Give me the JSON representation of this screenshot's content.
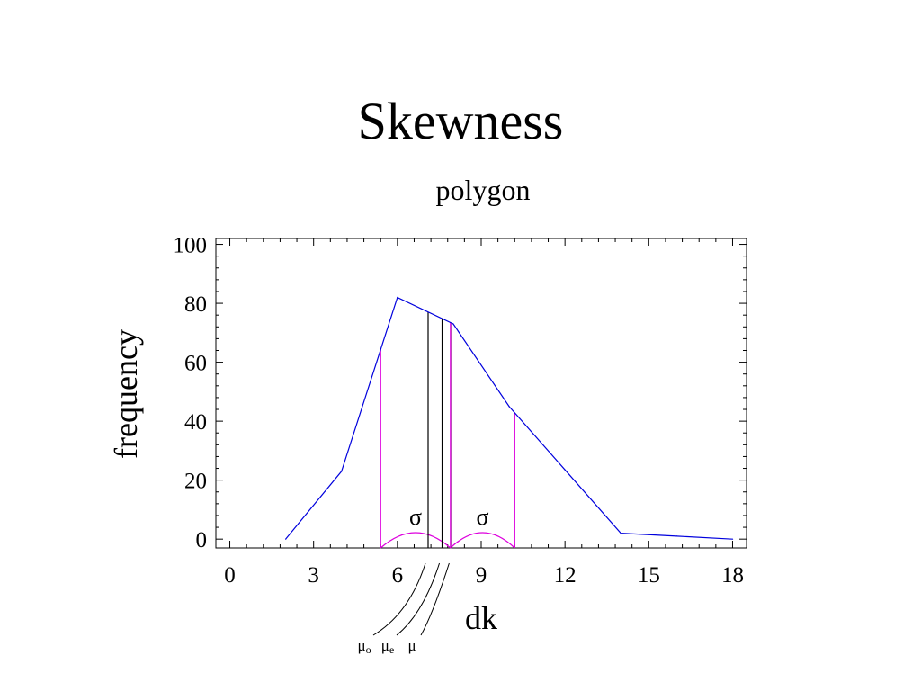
{
  "slide": {
    "title": "Skewness"
  },
  "chart_data": {
    "type": "line",
    "title": "polygon",
    "xlabel": "dk",
    "ylabel": "frequency",
    "xlim": [
      -0.5,
      18.5
    ],
    "ylim": [
      -3,
      102
    ],
    "x_ticks": [
      0,
      3,
      6,
      9,
      12,
      15,
      18
    ],
    "y_ticks": [
      0,
      20,
      40,
      60,
      80,
      100
    ],
    "grid": false,
    "series": [
      {
        "color": "#0000dd",
        "x": [
          2,
          4,
          6,
          8,
          10,
          12,
          14,
          16,
          18
        ],
        "y": [
          0,
          23,
          82,
          73,
          45,
          23.5,
          2,
          1,
          0
        ]
      }
    ],
    "sigma_markers": {
      "color": "#dd00dd",
      "label": "σ",
      "x": [
        5.4,
        7.9,
        10.2
      ]
    },
    "central_markers": {
      "color": "#000000",
      "items": [
        {
          "label": "μ",
          "sub": "o",
          "x": 7.1
        },
        {
          "label": "μ",
          "sub": "e",
          "x": 7.6
        },
        {
          "label": "μ",
          "sub": "",
          "x": 7.95
        }
      ]
    }
  }
}
